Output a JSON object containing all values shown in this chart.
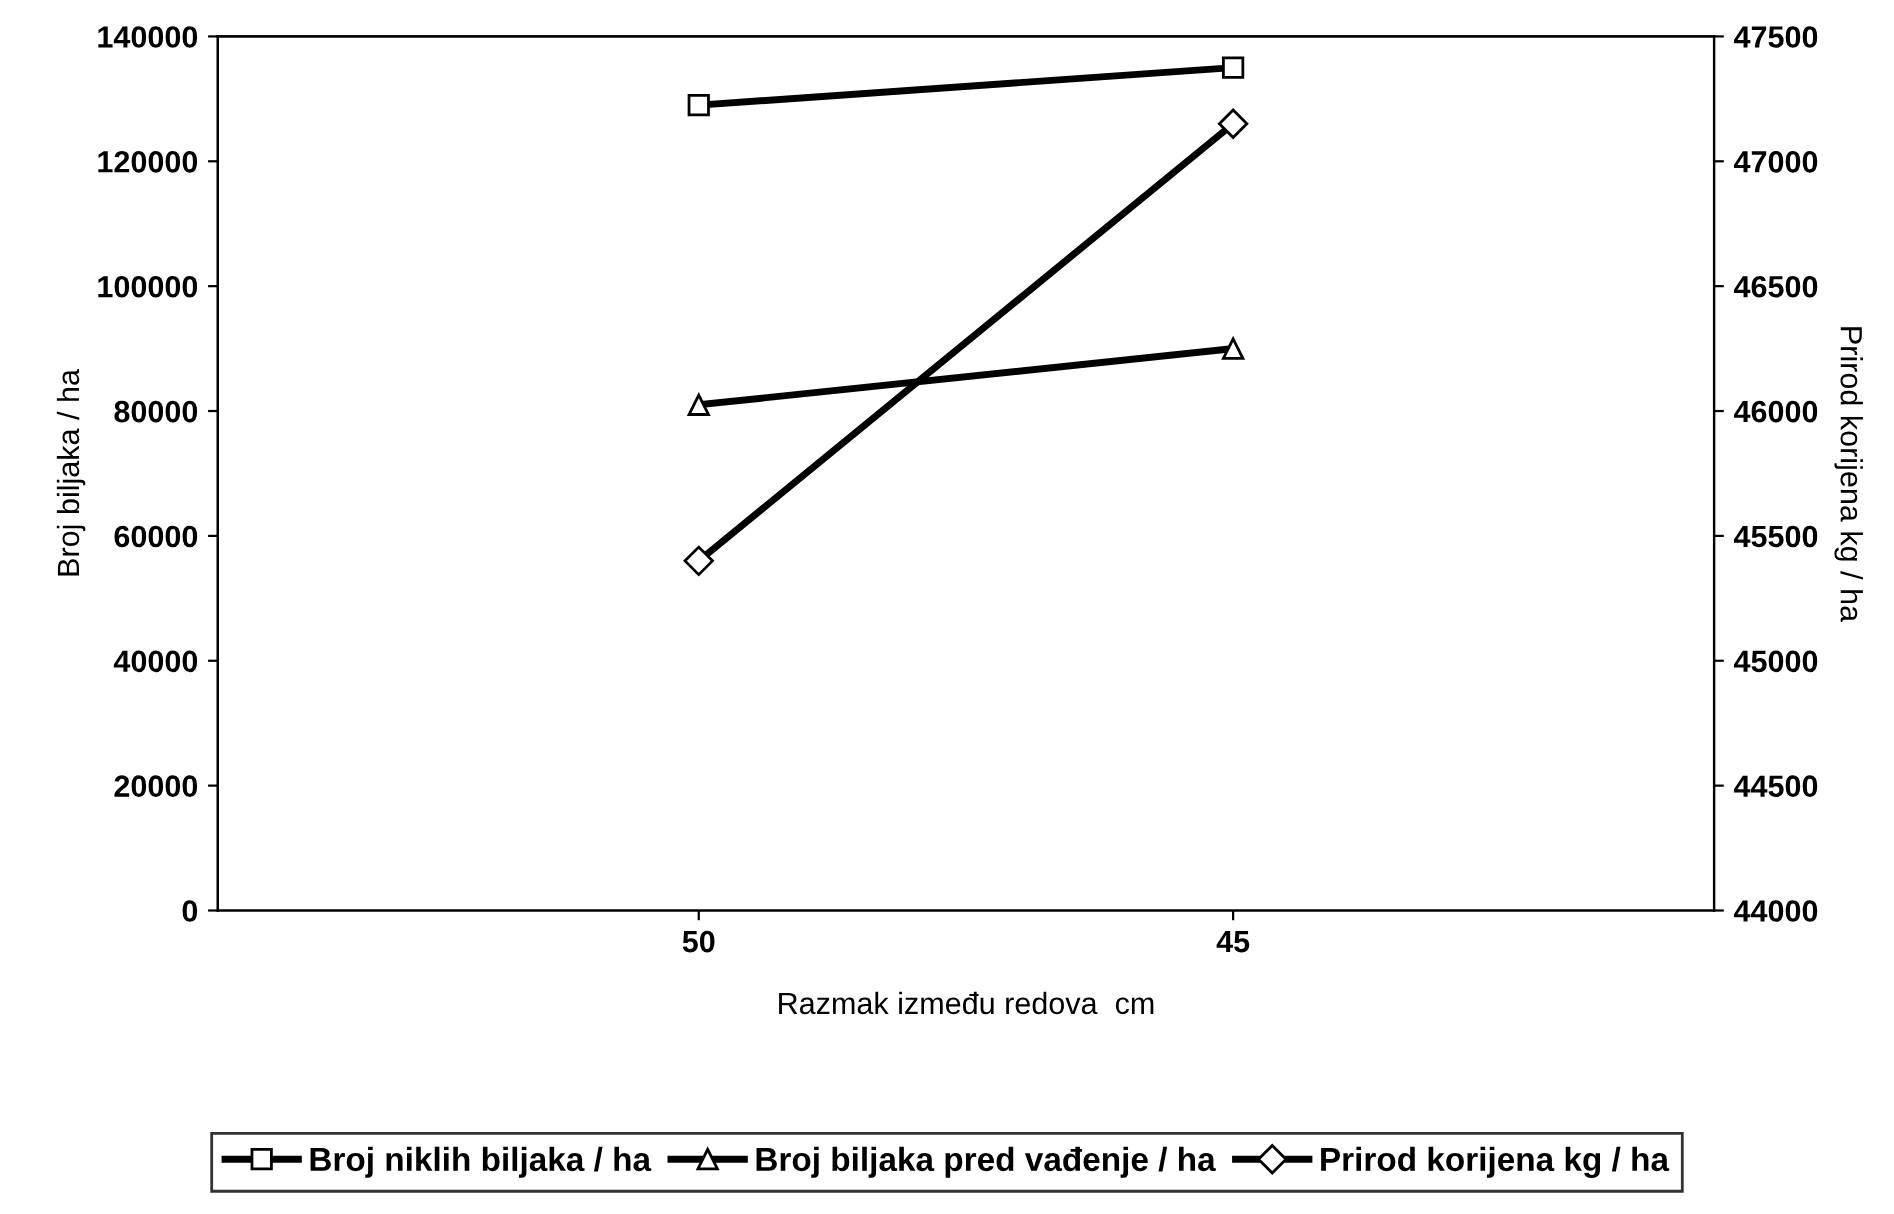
{
  "chart_data": {
    "type": "line",
    "xlabel": "Razmak između redova  cm",
    "ylabel": "Broj biljaka / ha",
    "y2label": "Prirod korijena kg / ha",
    "categories": [
      "50",
      "45"
    ],
    "series": [
      {
        "name": "Broj niklih biljaka / ha",
        "color": "#000000",
        "marker": "square",
        "values": [
          129000,
          135000
        ]
      },
      {
        "name": "Broj biljaka pred vađenje / ha",
        "color": "#000000",
        "marker": "triangle",
        "values": [
          81000,
          90000
        ]
      },
      {
        "name": "Prirod korijena kg / ha",
        "color": "#000000",
        "marker": "diamond",
        "axis": "y2",
        "values": [
          45400,
          47150
        ]
      }
    ],
    "ylim": [
      0,
      140000
    ],
    "yticks": [
      0,
      20000,
      40000,
      60000,
      80000,
      100000,
      120000,
      140000
    ],
    "y2lim": [
      44000,
      47500
    ],
    "y2ticks": [
      44000,
      44500,
      45000,
      45500,
      46000,
      46500,
      47000,
      47500
    ],
    "grid": false,
    "legend": "bottom",
    "line_style": "solid"
  }
}
